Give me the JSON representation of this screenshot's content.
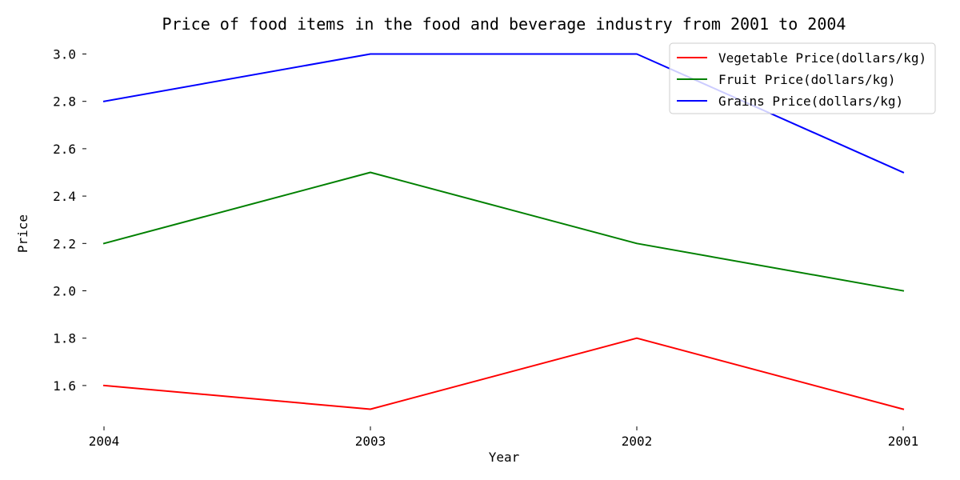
{
  "chart_data": {
    "type": "line",
    "title": "Price of food items in the food and beverage industry from 2001 to 2004",
    "xlabel": "Year",
    "ylabel": "Price",
    "categories": [
      "2004",
      "2003",
      "2002",
      "2001"
    ],
    "ylim": [
      1.5,
      3.0
    ],
    "yticks": [
      1.6,
      1.8,
      2.0,
      2.2,
      2.4,
      2.6,
      2.8,
      3.0
    ],
    "ytick_labels": [
      "1.6",
      "1.8",
      "2.0",
      "2.2",
      "2.4",
      "2.6",
      "2.8",
      "3.0"
    ],
    "grid": false,
    "legend_position": "top-right",
    "series": [
      {
        "name": "Vegetable Price(dollars/kg)",
        "color": "#ff0000",
        "values": [
          1.6,
          1.5,
          1.8,
          1.5
        ]
      },
      {
        "name": "Fruit Price(dollars/kg)",
        "color": "#008000",
        "values": [
          2.2,
          2.5,
          2.2,
          2.0
        ]
      },
      {
        "name": "Grains Price(dollars/kg)",
        "color": "#0000ff",
        "values": [
          2.8,
          3.0,
          3.0,
          2.5
        ]
      }
    ]
  }
}
